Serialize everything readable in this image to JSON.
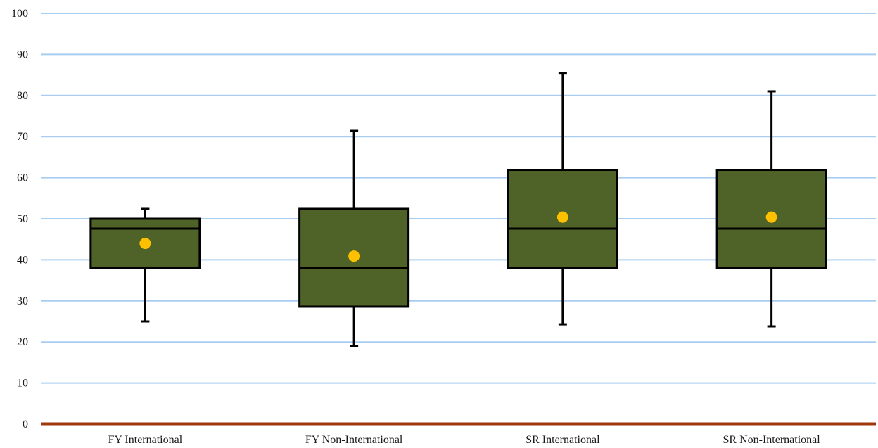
{
  "colors": {
    "grid": "#a9cdf0",
    "baseline": "#a0380f",
    "box_fill": "#4f6228",
    "box_stroke": "#000000",
    "mean_dot": "#ffc000"
  },
  "chart_data": {
    "type": "boxplot",
    "title": "",
    "xlabel": "",
    "ylabel": "",
    "ylim": [
      0,
      100
    ],
    "yticks": [
      0,
      10,
      20,
      30,
      40,
      50,
      60,
      70,
      80,
      90,
      100
    ],
    "grid": true,
    "legend": "none",
    "categories": [
      "FY International",
      "FY Non-International",
      "SR International",
      "SR Non-International"
    ],
    "boxes": [
      {
        "min": 25.0,
        "q1": 38.1,
        "median": 47.6,
        "q3": 50.0,
        "max": 52.4,
        "mean": 44.0
      },
      {
        "min": 19.0,
        "q1": 28.6,
        "median": 38.1,
        "q3": 52.4,
        "max": 71.4,
        "mean": 40.9
      },
      {
        "min": 24.3,
        "q1": 38.1,
        "median": 47.6,
        "q3": 61.9,
        "max": 85.5,
        "mean": 50.4
      },
      {
        "min": 23.8,
        "q1": 38.1,
        "median": 47.6,
        "q3": 61.9,
        "max": 81.0,
        "mean": 50.4
      }
    ]
  }
}
